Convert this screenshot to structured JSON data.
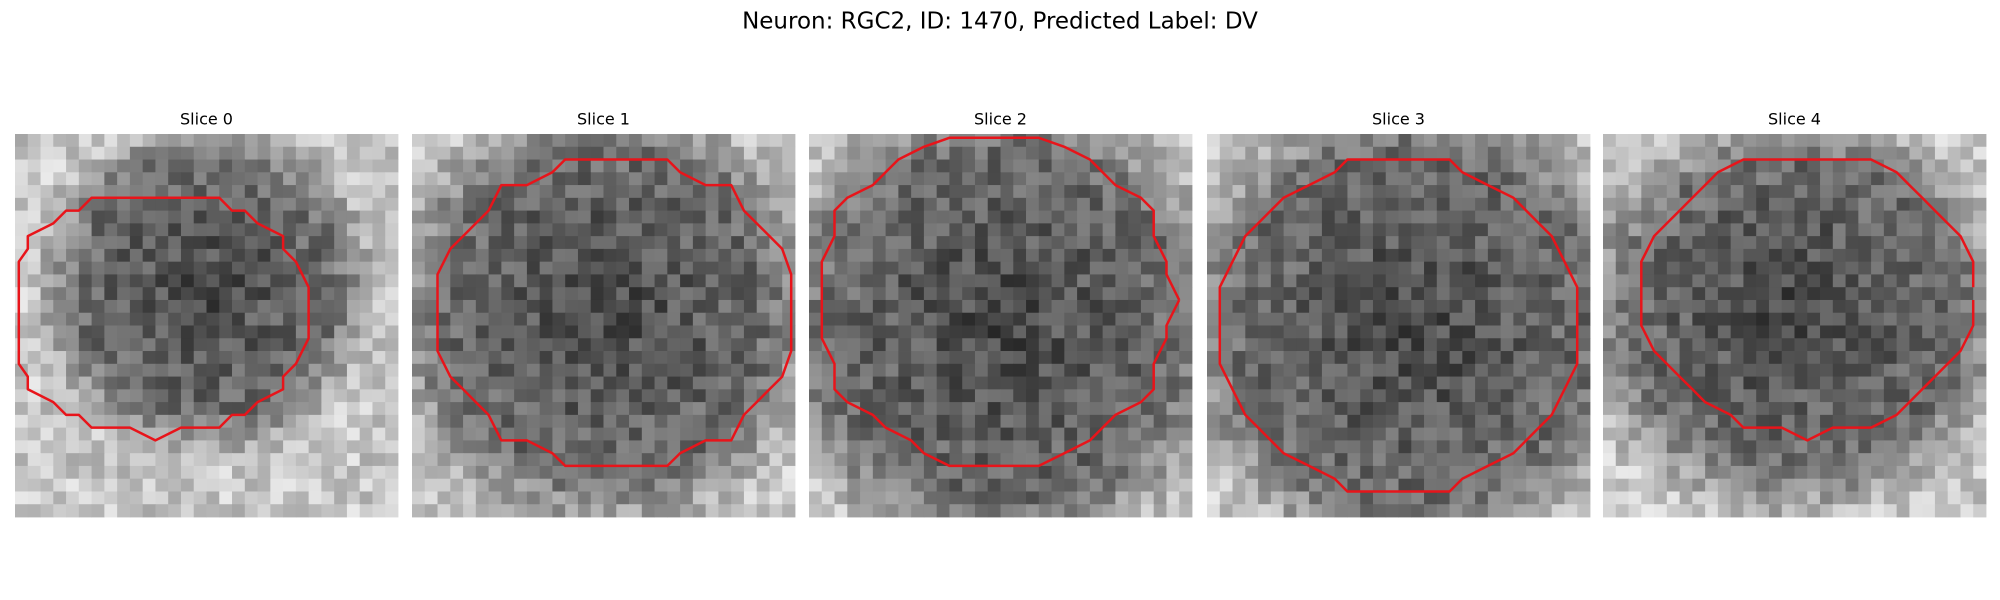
{
  "title": "Neuron: RGC2, ID: 1470, Predicted Label: DV",
  "panels": [
    {
      "title": "Slice 0"
    },
    {
      "title": "Slice 1"
    },
    {
      "title": "Slice 2"
    },
    {
      "title": "Slice 3"
    },
    {
      "title": "Slice 4"
    }
  ]
}
